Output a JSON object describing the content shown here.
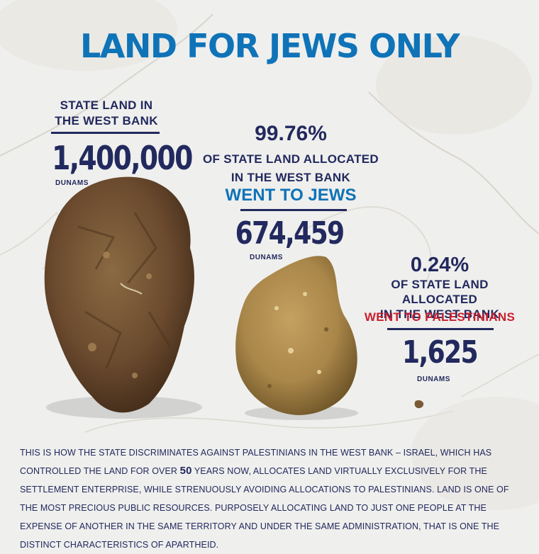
{
  "title": "LAND FOR JEWS ONLY",
  "total": {
    "label_line1": "STATE LAND IN",
    "label_line2": "THE WEST BANK",
    "value": "1,400,000",
    "unit": "DUNAMS"
  },
  "jews": {
    "percent": "99.76%",
    "line1": "OF STATE LAND ALLOCATED",
    "line2": "IN THE WEST BANK",
    "highlight": "WENT TO JEWS",
    "value": "674,459",
    "unit": "DUNAMS"
  },
  "palestinians": {
    "percent": "0.24%",
    "line1": "OF STATE LAND ALLOCATED",
    "line2": "IN THE WEST BANK",
    "highlight": "WENT TO PALESTINIANS",
    "value": "1,625",
    "unit": "DUNAMS"
  },
  "paragraph": {
    "part1": "THIS IS HOW THE STATE DISCRIMINATES AGAINST PALESTINIANS IN THE WEST BANK – ISRAEL, WHICH HAS CONTROLLED THE LAND FOR OVER ",
    "years": "50",
    "part2": " YEARS NOW, ALLOCATES LAND VIRTUALLY EXCLUSIVELY FOR THE SETTLEMENT ENTERPRISE, WHILE STRENUOUSLY AVOIDING ALLOCATIONS TO PALESTINIANS. LAND IS ONE OF THE MOST PRECIOUS PUBLIC RESOURCES. PURPOSELY ALLOCATING LAND TO JUST ONE PEOPLE AT THE EXPENSE OF ANOTHER IN THE SAME TERRITORY AND UNDER THE SAME ADMINISTRATION, THAT IS ONE THE DISTINCT CHARACTERISTICS OF APARTHEID."
  },
  "colors": {
    "title": "#0f73b8",
    "navy": "#22295e",
    "jews_highlight": "#0f73b8",
    "palestinians_highlight": "#c8202f",
    "soil_dark": "#6b4a2e",
    "soil_light": "#a98649"
  },
  "icons": [
    "large-soil-clump-icon",
    "medium-soil-clump-icon",
    "tiny-soil-crumb-icon"
  ]
}
